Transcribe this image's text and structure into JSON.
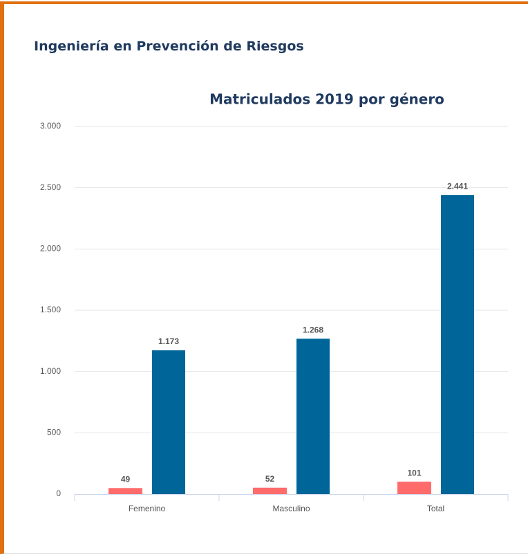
{
  "header": {
    "title": "Ingeniería en Prevención de Riesgos"
  },
  "chart_data": {
    "type": "bar",
    "title": "Matriculados 2019 por género",
    "categories": [
      "Femenino",
      "Masculino",
      "Total"
    ],
    "series": [
      {
        "color": "#ff6b6b",
        "values": [
          49,
          52,
          101
        ]
      },
      {
        "color": "#006699",
        "values": [
          1173,
          1268,
          2441
        ],
        "value_labels": [
          "1.173",
          "1.268",
          "2.441"
        ]
      }
    ],
    "ylim": [
      0,
      3000
    ],
    "yticks": [
      0,
      500,
      {
        "value": 1000,
        "label": "1.000"
      },
      {
        "value": 1500,
        "label": "1.500"
      },
      {
        "value": 2000,
        "label": "2.000"
      },
      {
        "value": 2500,
        "label": "2.500"
      },
      {
        "value": 3000,
        "label": "3.000"
      }
    ],
    "grid": true
  }
}
